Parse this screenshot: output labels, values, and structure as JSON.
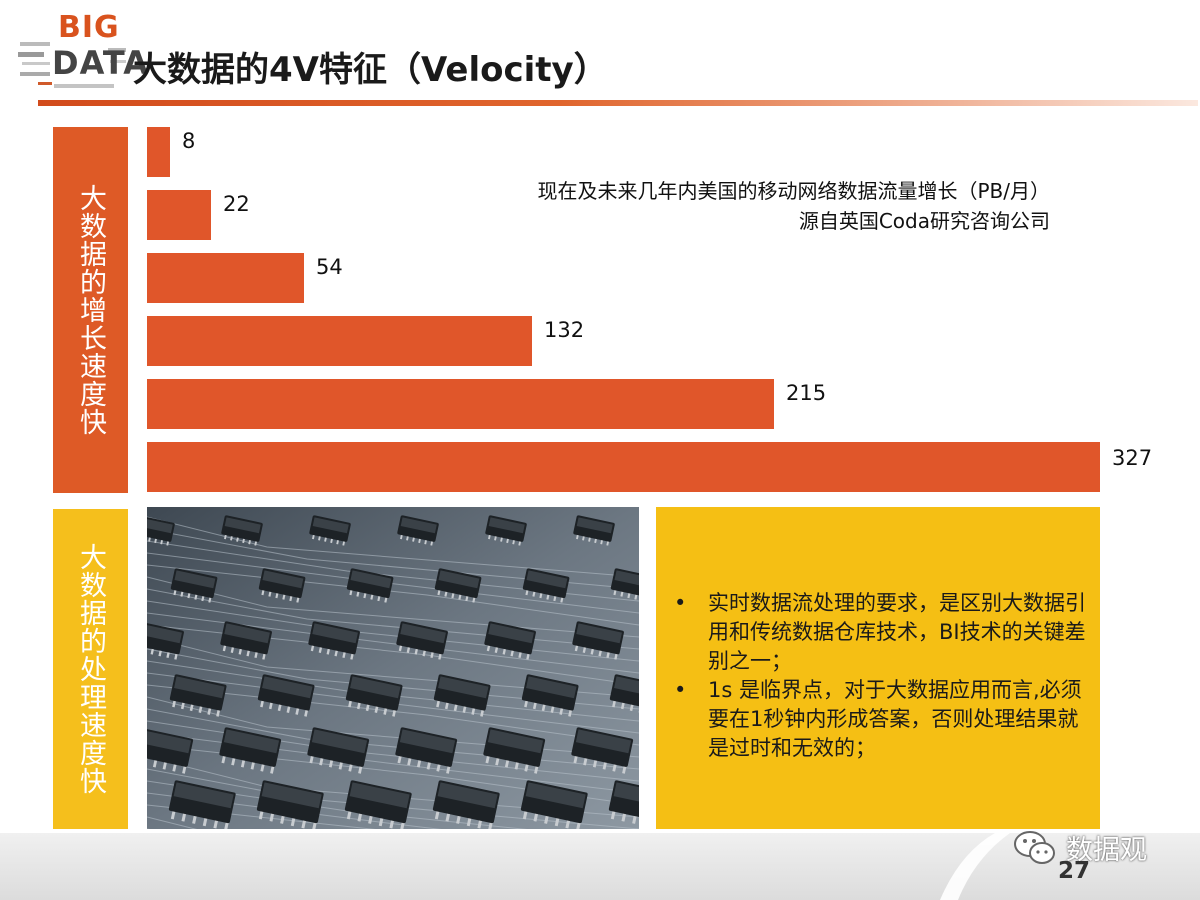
{
  "header": {
    "logo_big": "BIG",
    "logo_data": "DATA",
    "title": "大数据的4V特征（Velocity）"
  },
  "side_labels": {
    "top": "大数据的增长速度快",
    "bottom": "大数据的处理速度快"
  },
  "chart_data": {
    "type": "bar",
    "orientation": "horizontal",
    "values": [
      8,
      22,
      54,
      132,
      215,
      327
    ],
    "data_labels": [
      "8",
      "22",
      "54",
      "132",
      "215",
      "327"
    ],
    "caption_line1": "现在及未来几年内美国的移动网络数据流量增长（PB/月）",
    "caption_line2": "源自英国Coda研究咨询公司",
    "bar_color": "#e0562a",
    "grid": false
  },
  "image": {
    "icon": "circuit-board-photo"
  },
  "notes": {
    "items": [
      "实时数据流处理的要求，是区别大数据引用和传统数据仓库技术，BI技术的关键差别之一；",
      "1s 是临界点，对于大数据应用而言,必须要在1秒钟内形成答案，否则处理结果就是过时和无效的；"
    ]
  },
  "footer": {
    "brand": "数据观",
    "page_number": "27",
    "icon": "wechat-icon"
  },
  "colors": {
    "accent_orange": "#de5a26",
    "accent_yellow": "#f5bf14"
  }
}
